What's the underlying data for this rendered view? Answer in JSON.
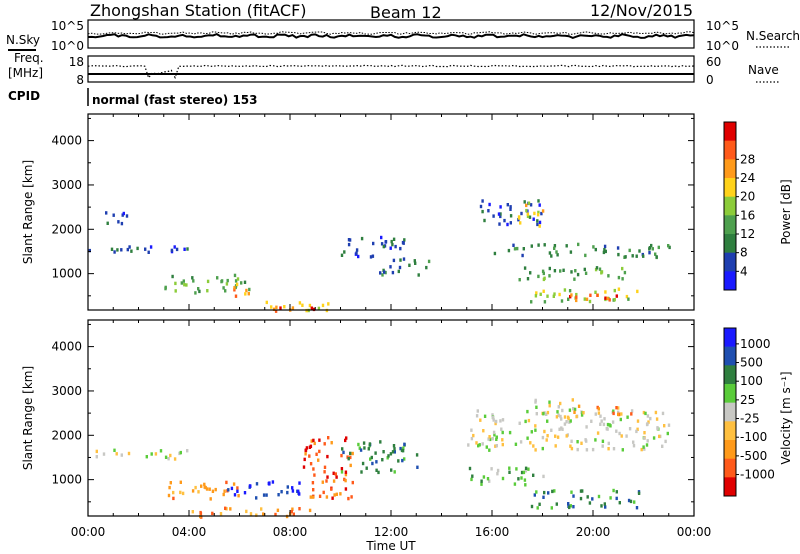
{
  "header": {
    "title": "Zhongshan Station (fitACF)",
    "beam": "Beam 12",
    "date": "12/Nov/2015"
  },
  "panels": {
    "nsky_label": "N.Sky",
    "nsky_ticks": [
      "10^5",
      "10^0"
    ],
    "nsearch_label": "N.Search",
    "nsearch_ticks": [
      "10^5",
      "10^0"
    ],
    "freq_label_1": "Freq.",
    "freq_label_2": "[MHz]",
    "freq_ticks": [
      "18",
      "8"
    ],
    "nave_label": "Nave",
    "nave_ticks": [
      "60",
      "0"
    ],
    "cpid_label": "CPID",
    "cpid_value": "normal (fast stereo) 153"
  },
  "colors": {
    "power": [
      "#1a1aff",
      "#1f3fb0",
      "#2f7f3f",
      "#4ea04e",
      "#8ccc3a",
      "#ffd21a",
      "#ff9a1a",
      "#ff5a1a",
      "#e00000"
    ],
    "velocity": [
      "#e00000",
      "#ff5a1a",
      "#ff9a1a",
      "#ffc040",
      "#c8c8c4",
      "#5acc3a",
      "#2f7f3f",
      "#1f4fb0",
      "#1a1aff"
    ],
    "gray": "#c8c8c4"
  },
  "chart_data": [
    {
      "type": "heatmap",
      "name": "power",
      "xlabel": "",
      "ylabel": "Slant Range [km]",
      "xlim": [
        0,
        24
      ],
      "ylim": [
        180,
        4600
      ],
      "yticks": [
        "1000",
        "2000",
        "3000",
        "4000"
      ],
      "colorbar": {
        "label": "Power [dB]",
        "ticks": [
          "4",
          "8",
          "12",
          "16",
          "20",
          "24",
          "28"
        ]
      },
      "regions": [
        {
          "t0": 0.5,
          "t1": 1.5,
          "r0": 2100,
          "r1": 2450,
          "level": 1
        },
        {
          "t0": 0.0,
          "t1": 4.0,
          "r0": 1500,
          "r1": 1700,
          "level": 1
        },
        {
          "t0": 3.0,
          "t1": 6.5,
          "r0": 600,
          "r1": 1000,
          "level": 3
        },
        {
          "t0": 5.5,
          "t1": 6.5,
          "r0": 500,
          "r1": 800,
          "level": 6
        },
        {
          "t0": 6.0,
          "t1": 9.5,
          "r0": 200,
          "r1": 400,
          "level": 5
        },
        {
          "t0": 7.0,
          "t1": 9.0,
          "r0": 180,
          "r1": 280,
          "level": 8
        },
        {
          "t0": 10.0,
          "t1": 12.5,
          "r0": 1400,
          "r1": 1900,
          "level": 1
        },
        {
          "t0": 11.5,
          "t1": 13.5,
          "r0": 1000,
          "r1": 1400,
          "level": 2
        },
        {
          "t0": 15.5,
          "t1": 18.0,
          "r0": 2100,
          "r1": 2700,
          "level": 1
        },
        {
          "t0": 17.0,
          "t1": 18.0,
          "r0": 2100,
          "r1": 2700,
          "level": 5
        },
        {
          "t0": 16.0,
          "t1": 23.0,
          "r0": 1400,
          "r1": 1700,
          "level": 2
        },
        {
          "t0": 17.0,
          "t1": 21.5,
          "r0": 900,
          "r1": 1200,
          "level": 3
        },
        {
          "t0": 17.5,
          "t1": 22.0,
          "r0": 400,
          "r1": 700,
          "level": 4
        },
        {
          "t0": 19.0,
          "t1": 21.5,
          "r0": 400,
          "r1": 600,
          "level": 7
        }
      ]
    },
    {
      "type": "heatmap",
      "name": "velocity",
      "xlabel": "Time UT",
      "ylabel": "Slant Range [km]",
      "xlim": [
        0,
        24
      ],
      "ylim": [
        180,
        4600
      ],
      "xticks": [
        "00:00",
        "04:00",
        "08:00",
        "12:00",
        "16:00",
        "20:00",
        "00:00"
      ],
      "yticks": [
        "1000",
        "2000",
        "3000",
        "4000"
      ],
      "colorbar": {
        "label": "Velocity [m s⁻¹]",
        "ticks": [
          "1000",
          "500",
          "100",
          "25",
          "-25",
          "-100",
          "-500",
          "-1000"
        ]
      },
      "regions": [
        {
          "t0": 0.0,
          "t1": 4.0,
          "r0": 1500,
          "r1": 1700,
          "level": 4
        },
        {
          "t0": 3.0,
          "t1": 6.0,
          "r0": 600,
          "r1": 1000,
          "level": 2
        },
        {
          "t0": 5.5,
          "t1": 8.5,
          "r0": 600,
          "r1": 1000,
          "level": 8
        },
        {
          "t0": 4.0,
          "t1": 9.0,
          "r0": 180,
          "r1": 400,
          "level": 2
        },
        {
          "t0": 8.5,
          "t1": 10.5,
          "r0": 600,
          "r1": 2000,
          "level": 1
        },
        {
          "t0": 10.0,
          "t1": 13.0,
          "r0": 1200,
          "r1": 1900,
          "level": 6
        },
        {
          "t0": 15.0,
          "t1": 23.0,
          "r0": 1700,
          "r1": 2600,
          "level": 4
        },
        {
          "t0": 17.5,
          "t1": 19.5,
          "r0": 2400,
          "r1": 2900,
          "level": 4
        },
        {
          "t0": 15.0,
          "t1": 18.0,
          "r0": 900,
          "r1": 1300,
          "level": 5
        },
        {
          "t0": 17.5,
          "t1": 22.0,
          "r0": 400,
          "r1": 800,
          "level": 6
        },
        {
          "t0": 19.0,
          "t1": 21.5,
          "r0": 2500,
          "r1": 2700,
          "level": 2
        }
      ]
    }
  ]
}
